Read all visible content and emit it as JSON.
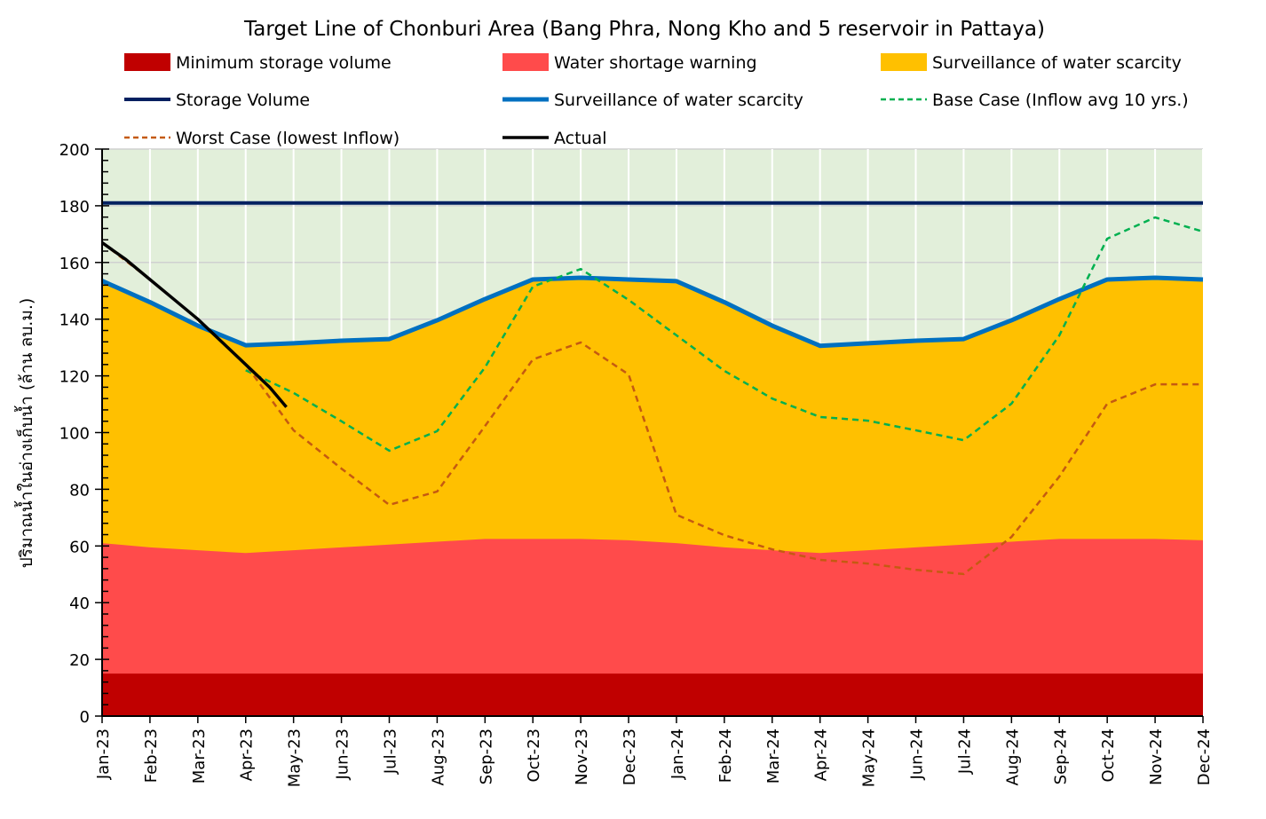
{
  "chart_data": {
    "type": "area",
    "title": "Target Line of Chonburi Area (Bang Phra, Nong Kho and 5 reservoir in Pattaya)",
    "xlabel": "",
    "ylabel": "ปริมาณน้ำในอ่างเก็บน้ำ (ล้าน ลบ.ม.)",
    "ylim": [
      0,
      200
    ],
    "yticks": [
      0,
      20,
      40,
      60,
      80,
      100,
      120,
      140,
      160,
      180,
      200
    ],
    "grid": true,
    "legend_position": "top",
    "categories": [
      "Jan-23",
      "Feb-23",
      "Mar-23",
      "Apr-23",
      "May-23",
      "Jun-23",
      "Jul-23",
      "Aug-23",
      "Sep-23",
      "Oct-23",
      "Nov-23",
      "Dec-23",
      "Jan-24",
      "Feb-24",
      "Mar-24",
      "Apr-24",
      "May-24",
      "Jun-24",
      "Jul-24",
      "Aug-24",
      "Sep-24",
      "Oct-24",
      "Nov-24",
      "Dec-24"
    ],
    "areas": [
      {
        "name": "Minimum storage volume",
        "color": "#c00000",
        "values": [
          15,
          15,
          15,
          15,
          15,
          15,
          15,
          15,
          15,
          15,
          15,
          15,
          15,
          15,
          15,
          15,
          15,
          15,
          15,
          15,
          15,
          15,
          15,
          15
        ]
      },
      {
        "name": "Water shortage warning",
        "color": "#ff4b4b",
        "values": [
          61,
          59.5,
          58.5,
          57.5,
          58.5,
          59.5,
          60.5,
          61.5,
          62.5,
          62.5,
          62.5,
          62,
          61,
          59.5,
          58.5,
          57.5,
          58.5,
          59.5,
          60.5,
          61.5,
          62.5,
          62.5,
          62.5,
          62
        ]
      },
      {
        "name": "Surveillance of water scarcity",
        "color": "#ffc000",
        "values": [
          153.5,
          146,
          137.7,
          130.8,
          131.5,
          132.4,
          133,
          139.6,
          147.1,
          154,
          154.6,
          154,
          153.4,
          146,
          137.7,
          130.6,
          131.5,
          132.4,
          133,
          139.6,
          147.1,
          154,
          154.6,
          154
        ]
      }
    ],
    "series": [
      {
        "name": "Storage Volume",
        "color": "#002060",
        "style": "solid",
        "values": [
          181,
          181,
          181,
          181,
          181,
          181,
          181,
          181,
          181,
          181,
          181,
          181,
          181,
          181,
          181,
          181,
          181,
          181,
          181,
          181,
          181,
          181,
          181,
          181
        ]
      },
      {
        "name": "Surveillance of water scarcity",
        "color": "#0070c0",
        "style": "solid",
        "values": [
          153.5,
          146,
          137.7,
          130.8,
          131.5,
          132.4,
          133,
          139.6,
          147.1,
          154,
          154.6,
          154,
          153.4,
          146,
          137.7,
          130.6,
          131.5,
          132.4,
          133,
          139.6,
          147.1,
          154,
          154.6,
          154
        ]
      },
      {
        "name": "Base Case (Inflow avg 10 yrs.)",
        "color": "#00b050",
        "style": "dashed",
        "values": [
          null,
          null,
          null,
          122,
          114,
          104,
          93.6,
          100.5,
          123,
          151.5,
          157.7,
          146.8,
          134.3,
          121.8,
          112,
          105.5,
          104.2,
          100.8,
          97.3,
          110.2,
          134.3,
          168.4,
          175.9,
          170.9
        ]
      },
      {
        "name": "Worst Case (lowest Inflow)",
        "color": "#c55a11",
        "style": "dashed",
        "values": [
          167,
          154,
          140,
          124,
          100.8,
          87.3,
          74.5,
          79.2,
          102.3,
          125.8,
          131.8,
          120.5,
          71,
          63.8,
          58.8,
          55.1,
          53.8,
          51.6,
          50.1,
          63.2,
          84.5,
          110.2,
          117,
          117
        ]
      },
      {
        "name": "Actual",
        "color": "#000000",
        "style": "solid",
        "points": [
          [
            0,
            167
          ],
          [
            0.5,
            161
          ],
          [
            1,
            154
          ],
          [
            1.5,
            147
          ],
          [
            2,
            140
          ],
          [
            2.5,
            132
          ],
          [
            3,
            124
          ],
          [
            3.5,
            116
          ],
          [
            3.85,
            109
          ]
        ]
      }
    ]
  }
}
